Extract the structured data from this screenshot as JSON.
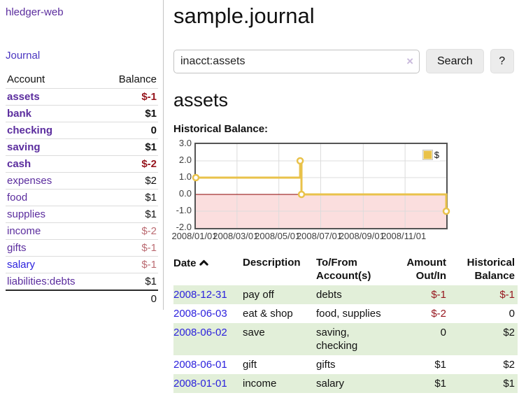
{
  "brand": {
    "label": "hledger-web"
  },
  "nav": {
    "journal": "Journal"
  },
  "sidebar": {
    "headers": {
      "account": "Account",
      "balance": "Balance"
    },
    "accounts": [
      {
        "name": "assets",
        "indent": 1,
        "bold": true,
        "balance": "$-1",
        "balance_tone": "neg-strong"
      },
      {
        "name": "bank",
        "indent": 2,
        "bold": true,
        "balance": "$1",
        "balance_tone": "normal"
      },
      {
        "name": "checking",
        "indent": 3,
        "bold": true,
        "balance": "0",
        "balance_tone": "normal"
      },
      {
        "name": "saving",
        "indent": 3,
        "bold": true,
        "balance": "$1",
        "balance_tone": "normal"
      },
      {
        "name": "cash",
        "indent": 2,
        "bold": true,
        "balance": "$-2",
        "balance_tone": "neg-strong"
      },
      {
        "name": "expenses",
        "indent": 1,
        "bold": false,
        "balance": "$2",
        "balance_tone": "normal"
      },
      {
        "name": "food",
        "indent": 2,
        "bold": false,
        "balance": "$1",
        "balance_tone": "normal"
      },
      {
        "name": "supplies",
        "indent": 2,
        "bold": false,
        "balance": "$1",
        "balance_tone": "normal"
      },
      {
        "name": "income",
        "indent": 1,
        "bold": false,
        "balance": "$-2",
        "balance_tone": "neg-soft"
      },
      {
        "name": "gifts",
        "indent": 2,
        "bold": false,
        "balance": "$-1",
        "balance_tone": "neg-soft"
      },
      {
        "name": "salary",
        "indent": 2,
        "bold": false,
        "balance": "$-1",
        "balance_tone": "neg-soft",
        "link_tone": "unvisited"
      },
      {
        "name": "liabilities:debts",
        "indent": 1,
        "bold": false,
        "balance": "$1",
        "balance_tone": "normal"
      }
    ],
    "total": "0"
  },
  "header": {
    "title": "sample.journal"
  },
  "search": {
    "value": "inacct:assets",
    "clear_icon": "×",
    "search_button": "Search",
    "help_button": "?"
  },
  "account_view": {
    "heading": "assets",
    "section_label": "Historical Balance:"
  },
  "chart_data": {
    "type": "line",
    "title": "Historical Balance",
    "step": true,
    "series": [
      {
        "name": "$",
        "points": [
          [
            "2008-01-01",
            1
          ],
          [
            "2008-06-01",
            2
          ],
          [
            "2008-06-03",
            0
          ],
          [
            "2008-12-31",
            -1
          ]
        ]
      }
    ],
    "x_range": [
      "2008-01-01",
      "2008-12-31"
    ],
    "x_ticks": [
      "2008/01/01",
      "2008/03/01",
      "2008/05/01",
      "2008/07/01",
      "2008/09/01",
      "2008/11/01"
    ],
    "y_ticks": [
      3.0,
      2.0,
      1.0,
      0.0,
      -1.0,
      -2.0
    ],
    "ylim": [
      -2,
      3
    ],
    "grid": true,
    "legend": {
      "label": "$",
      "position": "top-right"
    },
    "colors": {
      "line": "#e9c24a",
      "marker_fill": "#ffffff",
      "negative_fill": "#fbdede",
      "zero_line": "#8b0000",
      "gridline": "#dcdcdc",
      "border": "#545454"
    }
  },
  "register": {
    "headers": {
      "date": "Date",
      "description": "Description",
      "tofrom": "To/From Account(s)",
      "amount": "Amount Out/In",
      "balance": "Historical Balance"
    },
    "rows": [
      {
        "date": "2008-12-31",
        "description": "pay off",
        "tofrom": "debts",
        "amount": "$-1",
        "amount_neg": true,
        "balance": "$-1",
        "balance_neg": true
      },
      {
        "date": "2008-06-03",
        "description": "eat & shop",
        "tofrom": "food, supplies",
        "amount": "$-2",
        "amount_neg": true,
        "balance": "0",
        "balance_neg": false
      },
      {
        "date": "2008-06-02",
        "description": "save",
        "tofrom": "saving, checking",
        "amount": "0",
        "amount_neg": false,
        "balance": "$2",
        "balance_neg": false
      },
      {
        "date": "2008-06-01",
        "description": "gift",
        "tofrom": "gifts",
        "amount": "$1",
        "amount_neg": false,
        "balance": "$2",
        "balance_neg": false
      },
      {
        "date": "2008-01-01",
        "description": "income",
        "tofrom": "salary",
        "amount": "$1",
        "amount_neg": false,
        "balance": "$1",
        "balance_neg": false
      }
    ]
  },
  "colors": {
    "visited_link": "#5b2d9e",
    "unvisited_link": "#2a1fdd",
    "negative_strong": "#96151d",
    "negative_soft": "#bb6b72",
    "row_stripe": "#e2efd9",
    "divider": "#c3c3c3"
  }
}
